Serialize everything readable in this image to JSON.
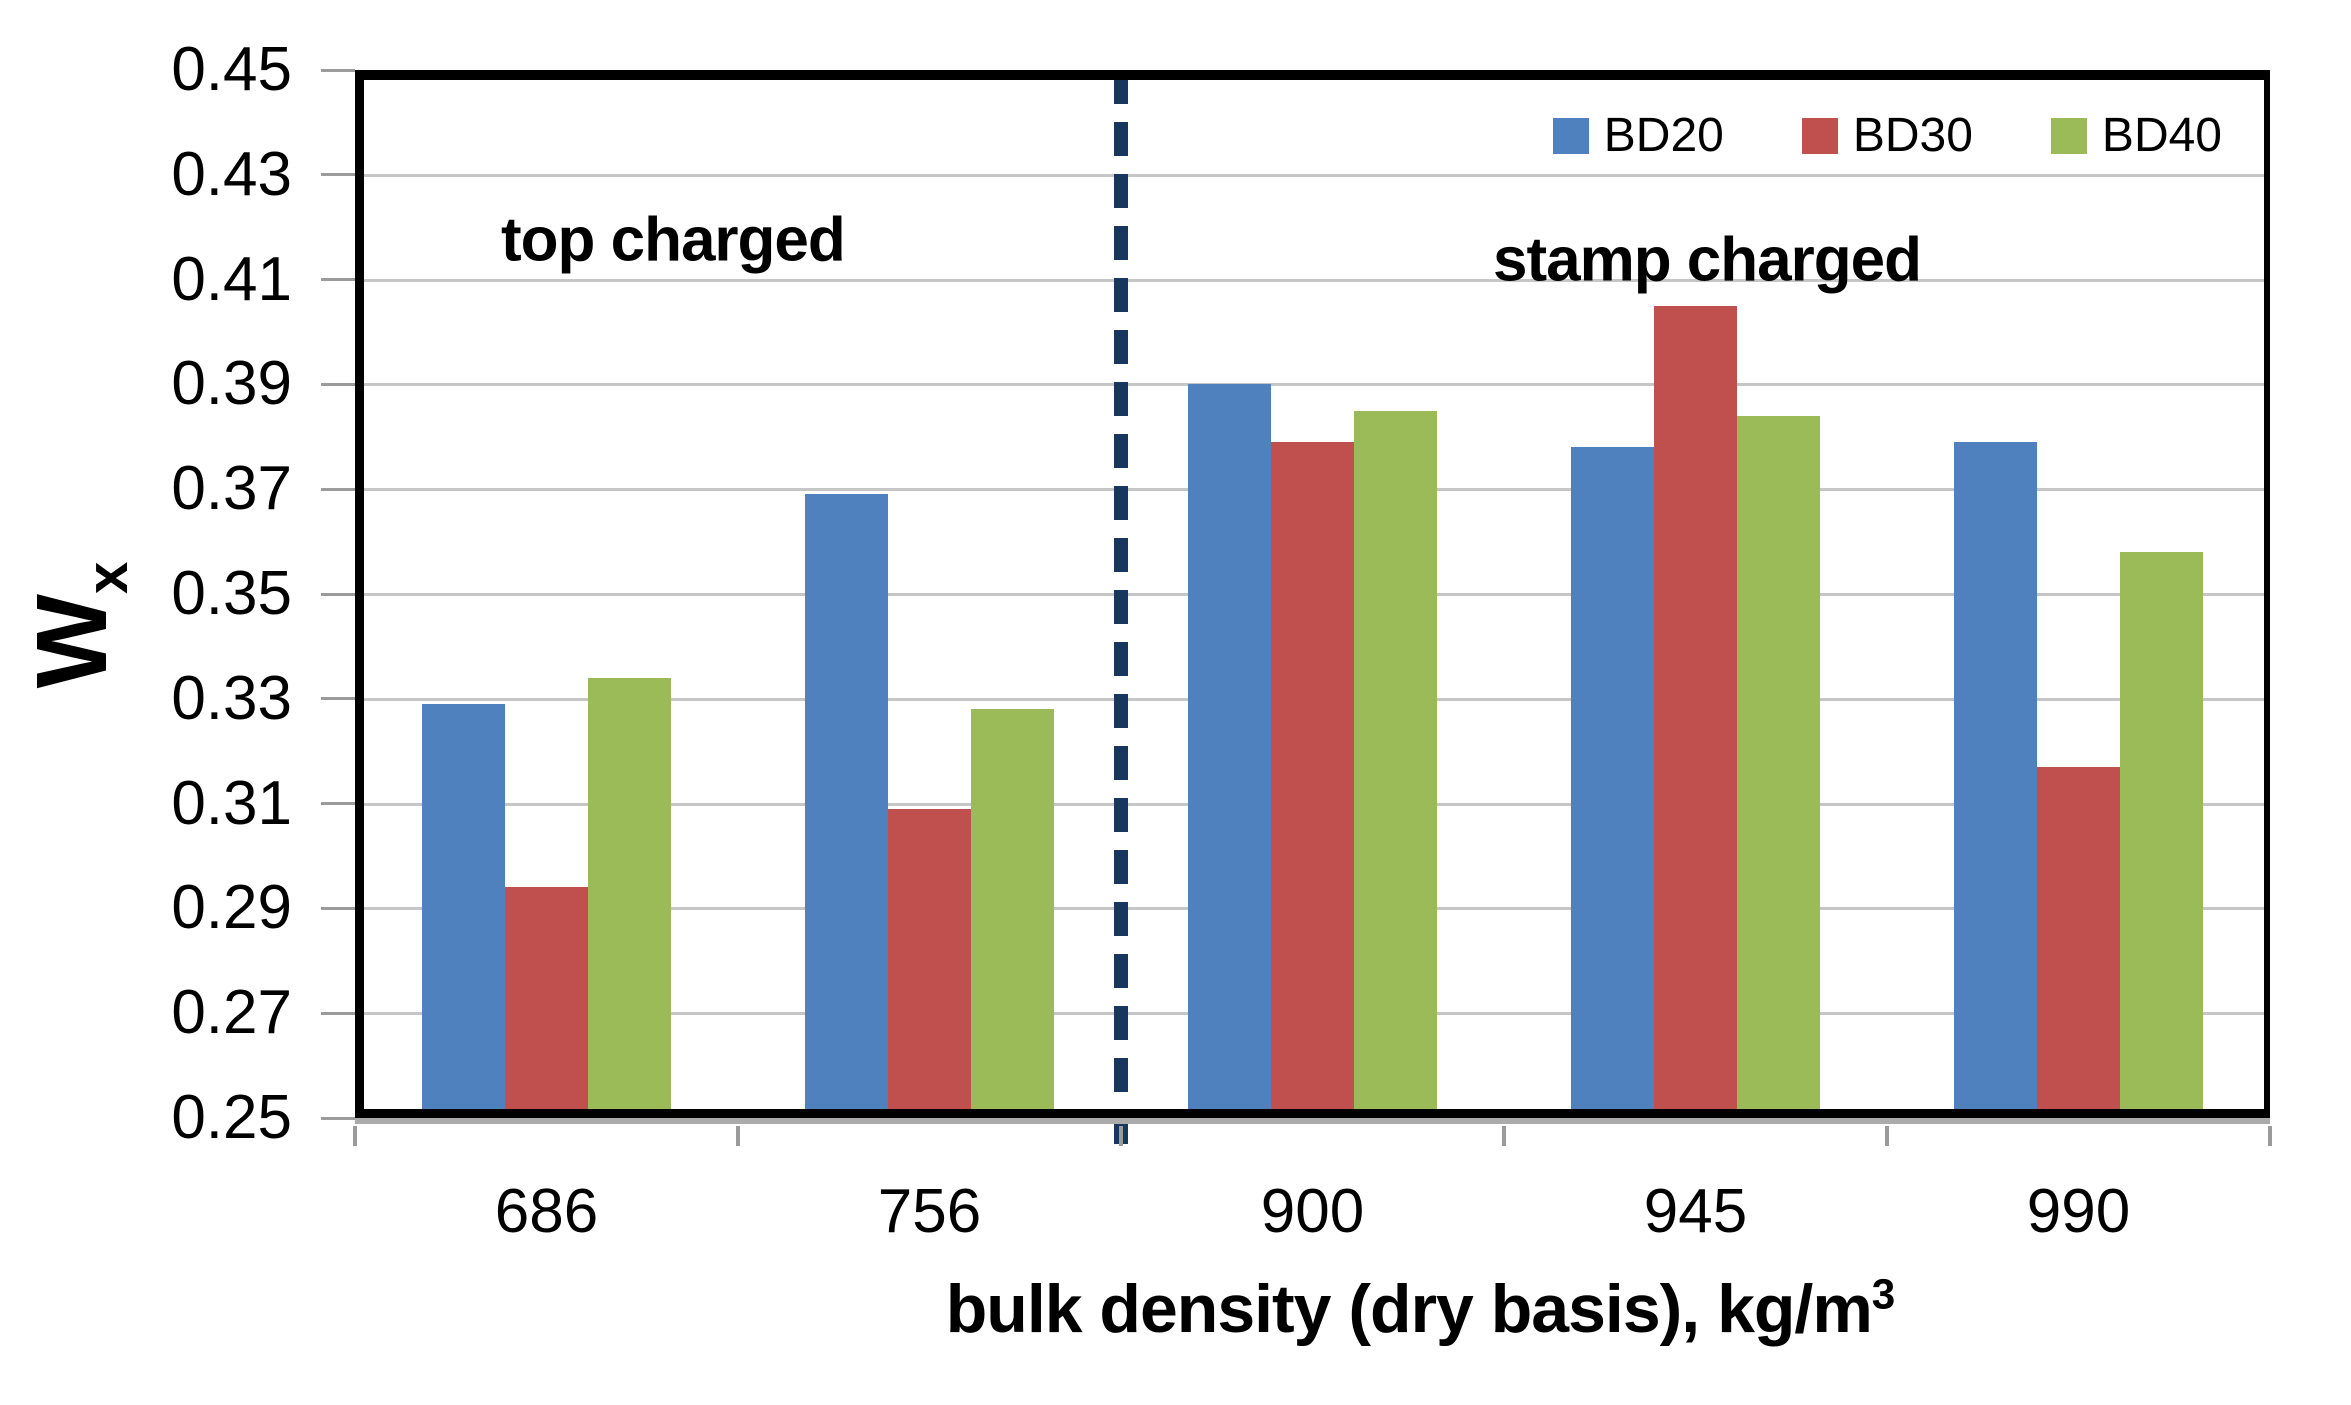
{
  "figure": {
    "background": "#ffffff"
  },
  "chart_data": {
    "type": "bar",
    "title": "",
    "categories": [
      "686",
      "756",
      "900",
      "945",
      "990"
    ],
    "series": [
      {
        "name": "BD20",
        "color": "#4E81BD",
        "values": [
          0.329,
          0.369,
          0.39,
          0.378,
          0.379
        ]
      },
      {
        "name": "BD30",
        "color": "#C0504D",
        "values": [
          0.294,
          0.309,
          0.379,
          0.405,
          0.317
        ]
      },
      {
        "name": "BD40",
        "color": "#9BBB59",
        "values": [
          0.334,
          0.328,
          0.385,
          0.384,
          0.358
        ]
      }
    ],
    "xlabel": {
      "text": "bulk density (dry basis), kg/m",
      "sup": "3"
    },
    "ylabel": {
      "base": "W",
      "sub": "x"
    },
    "ylim": [
      0.25,
      0.45
    ],
    "ytick_step": 0.02,
    "yticks": [
      "0.45",
      "0.43",
      "0.41",
      "0.39",
      "0.37",
      "0.35",
      "0.33",
      "0.31",
      "0.29",
      "0.27",
      "0.25"
    ],
    "grid": true,
    "legend": {
      "position": "top-right",
      "items": [
        "BD20",
        "BD30",
        "BD40"
      ]
    },
    "annotations": [
      {
        "text": "top charged",
        "region_categories": [
          "686",
          "756"
        ]
      },
      {
        "text": "stamp charged",
        "region_categories": [
          "900",
          "945",
          "990"
        ]
      }
    ],
    "divider": {
      "between": [
        "756",
        "900"
      ],
      "style": "dashed",
      "color": "#17375E"
    },
    "colors": {
      "grid": "#c6c6c6",
      "axis": "#000000",
      "tick": "#9b9b9b",
      "axis_shadow": "#ababab"
    }
  }
}
